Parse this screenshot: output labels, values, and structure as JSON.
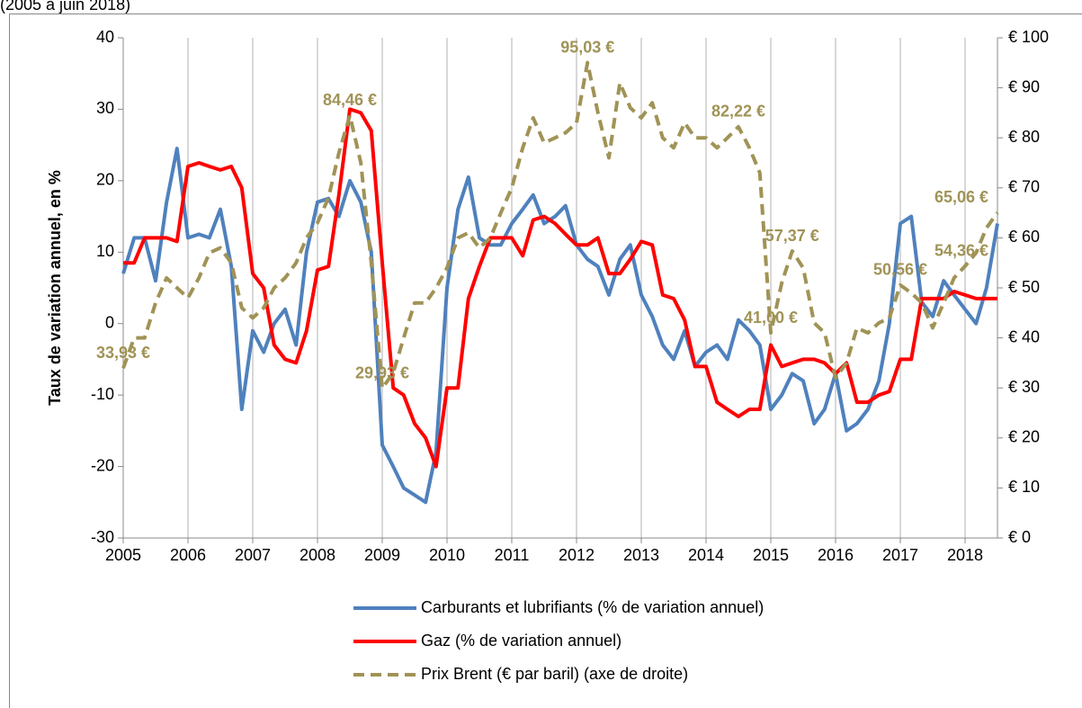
{
  "chart_data": {
    "type": "line",
    "subtitle": "(2005 à juin 2018)",
    "ylabel": "Taux de variation annuel, en %",
    "x": [
      2005.0,
      2005.17,
      2005.33,
      2005.5,
      2005.67,
      2005.83,
      2006.0,
      2006.17,
      2006.33,
      2006.5,
      2006.67,
      2006.83,
      2007.0,
      2007.17,
      2007.33,
      2007.5,
      2007.67,
      2007.83,
      2008.0,
      2008.17,
      2008.33,
      2008.5,
      2008.67,
      2008.83,
      2009.0,
      2009.17,
      2009.33,
      2009.5,
      2009.67,
      2009.83,
      2010.0,
      2010.17,
      2010.33,
      2010.5,
      2010.67,
      2010.83,
      2011.0,
      2011.17,
      2011.33,
      2011.5,
      2011.67,
      2011.83,
      2012.0,
      2012.17,
      2012.33,
      2012.5,
      2012.67,
      2012.83,
      2013.0,
      2013.17,
      2013.33,
      2013.5,
      2013.67,
      2013.83,
      2014.0,
      2014.17,
      2014.33,
      2014.5,
      2014.67,
      2014.83,
      2015.0,
      2015.17,
      2015.33,
      2015.5,
      2015.67,
      2015.83,
      2016.0,
      2016.17,
      2016.33,
      2016.5,
      2016.67,
      2016.83,
      2017.0,
      2017.17,
      2017.33,
      2017.5,
      2017.67,
      2017.83,
      2018.0,
      2018.17,
      2018.33,
      2018.5
    ],
    "series": [
      {
        "name": "Carburants et lubrifiants (% de variation annuel)",
        "color": "#4f81bd",
        "dash": false,
        "axis": "y",
        "values": [
          7,
          12,
          12,
          6,
          17,
          24.5,
          12,
          12.5,
          12,
          16,
          8,
          -12,
          -1,
          -4,
          0,
          2,
          -3,
          10,
          17,
          17.5,
          15,
          20,
          17,
          10,
          -17,
          -20,
          -23,
          -24,
          -25,
          -18,
          5,
          16,
          20.5,
          12,
          11,
          11,
          14,
          16,
          18,
          14,
          15,
          16.5,
          11,
          9,
          8,
          4,
          9,
          11,
          4,
          1,
          -3,
          -5,
          -1,
          -6,
          -4,
          -3,
          -5,
          0.5,
          -1,
          -3,
          -12,
          -10,
          -7,
          -8,
          -14,
          -12,
          -7,
          -15,
          -14,
          -12,
          -8,
          0,
          14,
          15,
          3,
          1,
          6,
          4,
          2,
          0,
          5,
          14
        ]
      },
      {
        "name": "Gaz (% de variation annuel)",
        "color": "#ff0000",
        "dash": false,
        "axis": "y",
        "values": [
          8.5,
          8.5,
          12,
          12,
          12,
          11.5,
          22,
          22.5,
          22,
          21.5,
          22,
          19,
          7,
          5,
          -3,
          -5,
          -5.5,
          -1,
          7.5,
          8,
          18,
          30,
          29.5,
          27,
          8.5,
          -9,
          -10,
          -14,
          -16,
          -20,
          -9,
          -9,
          3.5,
          8,
          12,
          12,
          12,
          9.5,
          14.5,
          15,
          14,
          12.5,
          11,
          11,
          12,
          7,
          7,
          9,
          11.5,
          11,
          4,
          3.5,
          0.5,
          -6,
          -6,
          -11,
          -12,
          -13,
          -12,
          -12,
          -3,
          -6,
          -5.5,
          -5,
          -5,
          -5.5,
          -7,
          -5.5,
          -11,
          -11,
          -10,
          -9.5,
          -5,
          -5,
          3.5,
          3.5,
          3.5,
          4.5,
          4,
          3.5,
          3.5,
          3.5
        ]
      },
      {
        "name": "Prix Brent (€ par baril) (axe de droite)",
        "color": "#a09356",
        "dash": true,
        "axis": "y2",
        "values": [
          33.93,
          40,
          40,
          47,
          52,
          50,
          48,
          52,
          57,
          58,
          55,
          46,
          44,
          46,
          50,
          52,
          55,
          60,
          63,
          68,
          77,
          84.46,
          75,
          55,
          29.93,
          33,
          40,
          47,
          47,
          50,
          54,
          60,
          61,
          58,
          60,
          65,
          70,
          78,
          84,
          79,
          80,
          81,
          83,
          95.03,
          85,
          76,
          91,
          86,
          84,
          87,
          80,
          78,
          83,
          80,
          80,
          78,
          80,
          82.22,
          78,
          73,
          41.0,
          51,
          57.37,
          54,
          43,
          41,
          32,
          35,
          42,
          41,
          43,
          44,
          50.56,
          49,
          47,
          42,
          47,
          52,
          54.36,
          57,
          62,
          65.06
        ]
      }
    ],
    "annotations": [
      {
        "text": "33,93 €",
        "x": 2005.0,
        "y": 33.93
      },
      {
        "text": "84,46 €",
        "x": 2008.5,
        "y": 84.46
      },
      {
        "text": "29,93 €",
        "x": 2009.0,
        "y": 29.93
      },
      {
        "text": "95,03 €",
        "x": 2012.17,
        "y": 95.03
      },
      {
        "text": "82,22 €",
        "x": 2014.5,
        "y": 82.22
      },
      {
        "text": "41,00 €",
        "x": 2015.0,
        "y": 41.0
      },
      {
        "text": "57,37 €",
        "x": 2015.33,
        "y": 57.37
      },
      {
        "text": "50,56 €",
        "x": 2017.0,
        "y": 50.56
      },
      {
        "text": "54,36 €",
        "x": 2018.0,
        "y": 54.36
      },
      {
        "text": "65,06 €",
        "x": 2018.5,
        "y": 65.06
      }
    ],
    "xlim": [
      2005,
      2018.5
    ],
    "xticks": [
      2005,
      2006,
      2007,
      2008,
      2009,
      2010,
      2011,
      2012,
      2013,
      2014,
      2015,
      2016,
      2017,
      2018
    ],
    "ylim": [
      -30,
      40
    ],
    "yticks": [
      -30,
      -20,
      -10,
      0,
      10,
      20,
      30,
      40
    ],
    "y2lim": [
      0,
      100
    ],
    "y2ticks": [
      {
        "value": 0,
        "label": "€ 0"
      },
      {
        "value": 10,
        "label": "€ 10"
      },
      {
        "value": 20,
        "label": "€ 20"
      },
      {
        "value": 30,
        "label": "€ 30"
      },
      {
        "value": 40,
        "label": "€ 40"
      },
      {
        "value": 50,
        "label": "€ 50"
      },
      {
        "value": 60,
        "label": "€ 60"
      },
      {
        "value": 70,
        "label": "€ 70"
      },
      {
        "value": 80,
        "label": "€ 80"
      },
      {
        "value": 90,
        "label": "€ 90"
      },
      {
        "value": 100,
        "label": "€ 100"
      }
    ],
    "xgrid": true,
    "legend": "bottom"
  }
}
